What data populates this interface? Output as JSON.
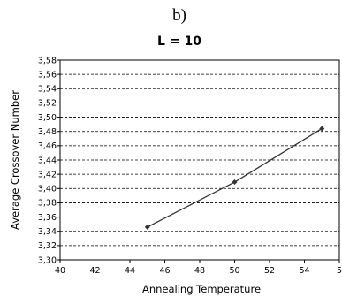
{
  "chart_data": {
    "type": "line",
    "panel_label": "b)",
    "title": "L = 10",
    "xlabel": "Annealing Temperature",
    "ylabel": "Average Crossover Number",
    "xlim": [
      40,
      56
    ],
    "ylim": [
      3.3,
      3.58
    ],
    "x_ticks": [
      "40",
      "42",
      "44",
      "46",
      "48",
      "50",
      "52",
      "54",
      "5"
    ],
    "y_ticks": [
      "3,30",
      "3,32",
      "3,34",
      "3,36",
      "3,38",
      "3,40",
      "3,42",
      "3,44",
      "3,46",
      "3,48",
      "3,50",
      "3,52",
      "3,54",
      "3,56",
      "3,58"
    ],
    "grid": "horizontal dashed",
    "series": [
      {
        "x": [
          45,
          50,
          55
        ],
        "values": [
          3.346,
          3.409,
          3.484
        ],
        "color": "#333333",
        "marker": "diamond"
      }
    ]
  }
}
